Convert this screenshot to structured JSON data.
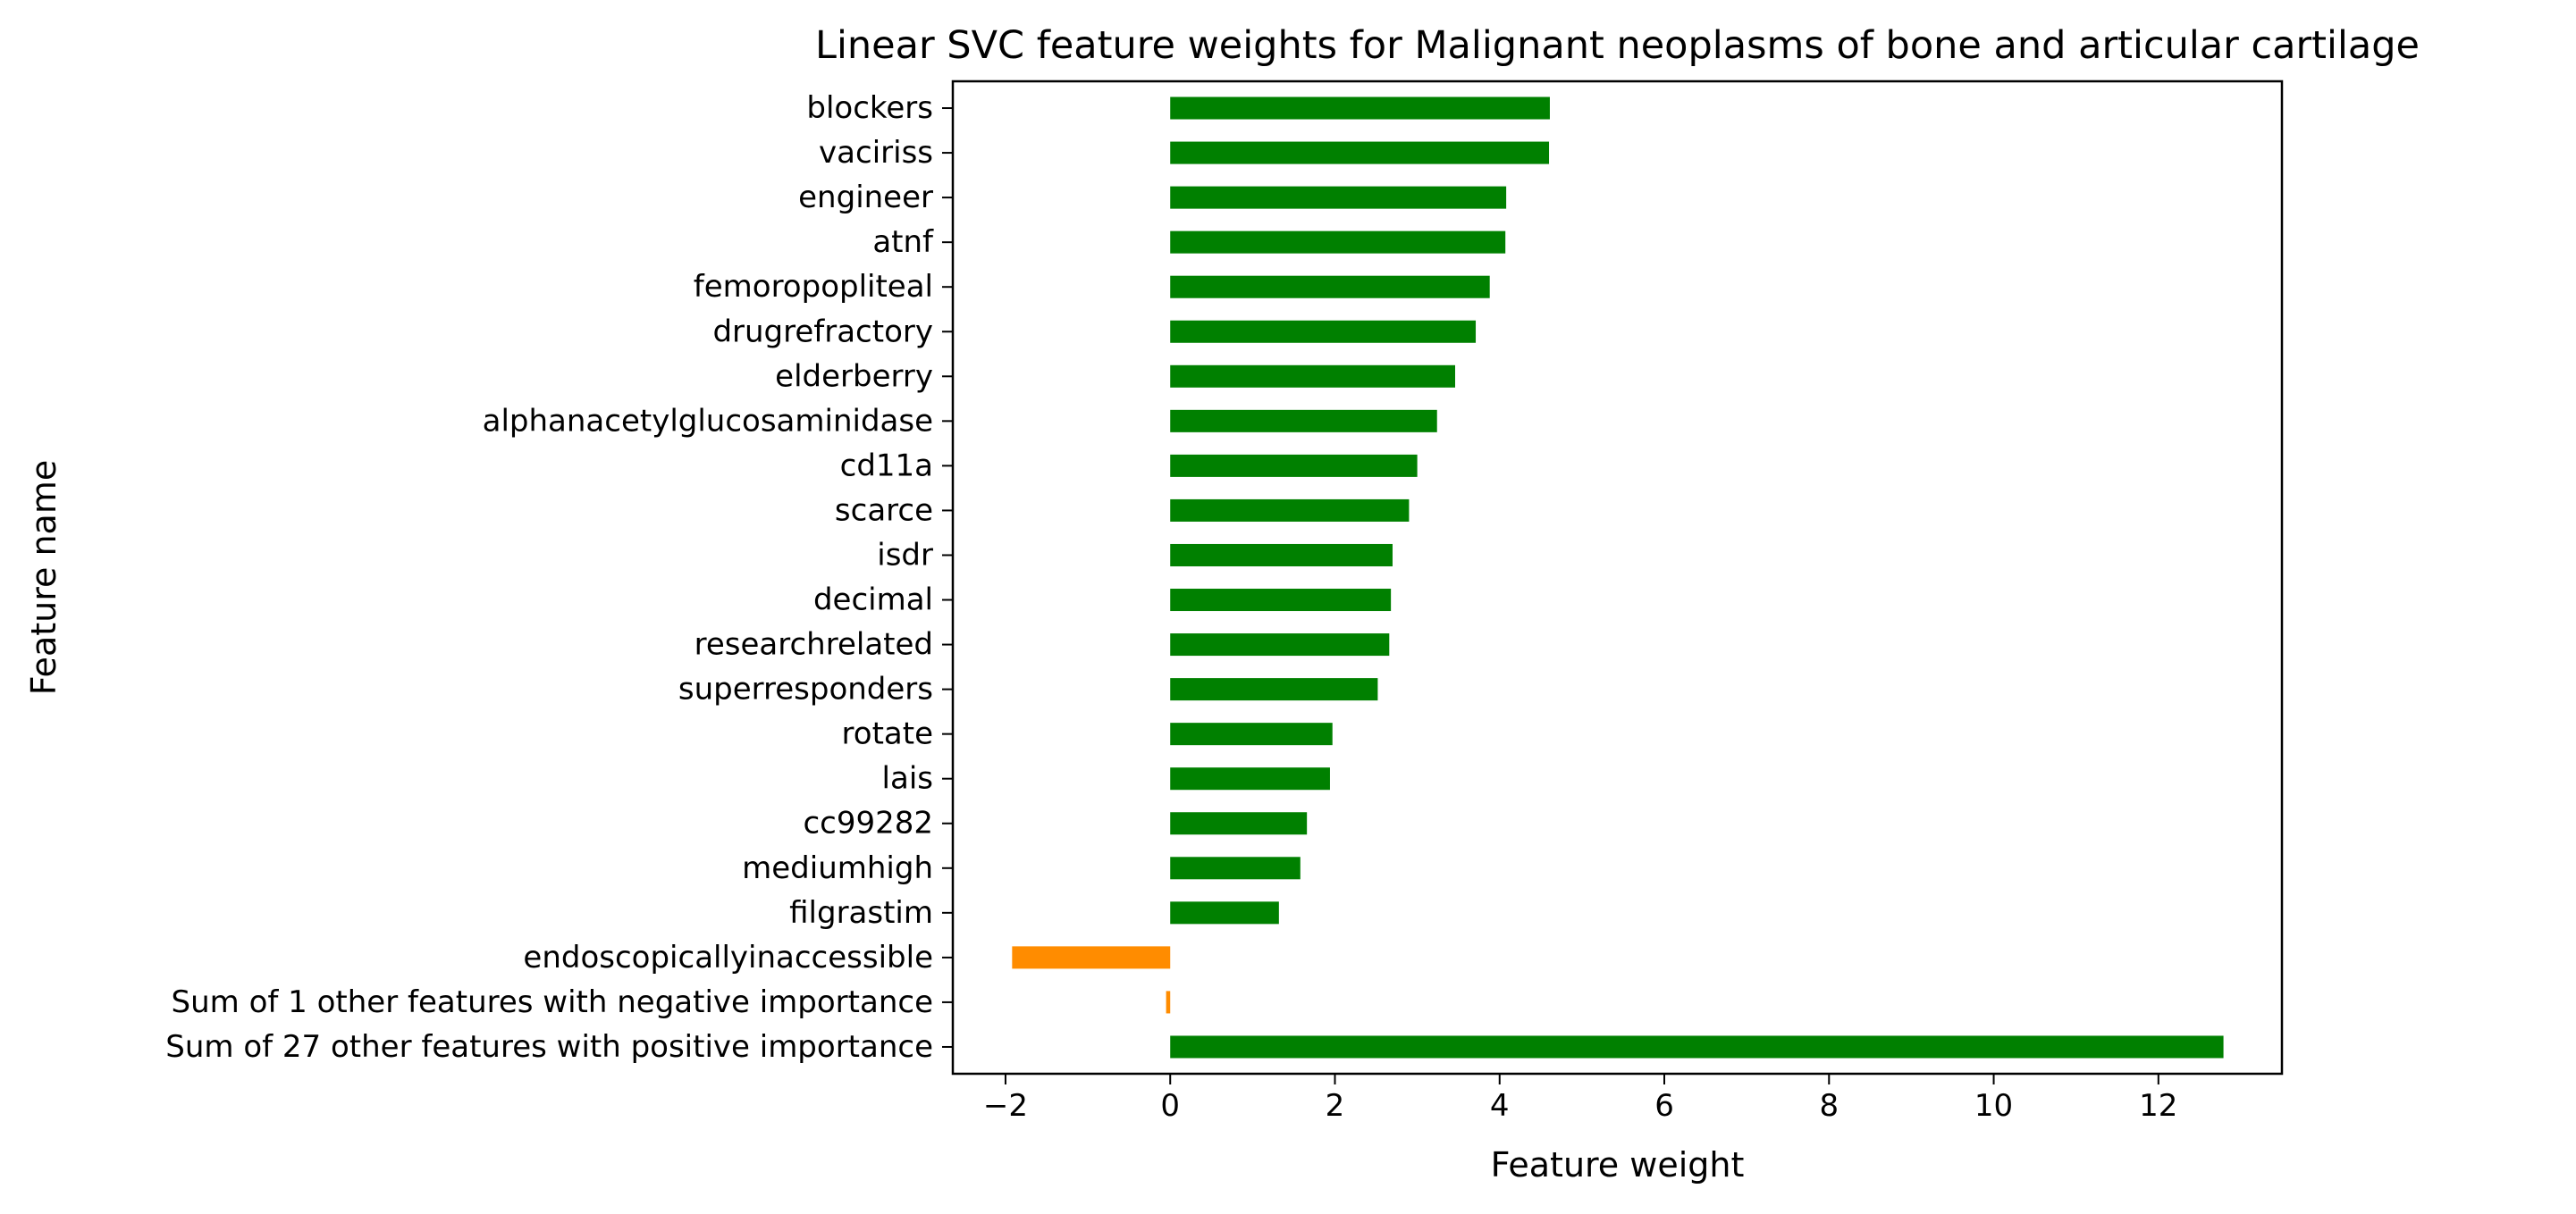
{
  "chart_data": {
    "type": "bar",
    "orientation": "horizontal",
    "title": "Linear SVC feature weights for Malignant neoplasms of bone and articular cartilage",
    "xlabel": "Feature weight",
    "ylabel": "Feature name",
    "xlim": [
      -2.64,
      13.5
    ],
    "xticks": [
      -2,
      0,
      2,
      4,
      6,
      8,
      10,
      12
    ],
    "xtick_labels": [
      "−2",
      "0",
      "2",
      "4",
      "6",
      "8",
      "10",
      "12"
    ],
    "grid": false,
    "legend": "none",
    "colors": {
      "positive": "#008000",
      "negative": "#ff8c00"
    },
    "categories": [
      "blockers",
      "vaciriss",
      "engineer",
      "atnf",
      "femoropopliteal",
      "drugrefractory",
      "elderberry",
      "alphanacetylglucosaminidase",
      "cd11a",
      "scarce",
      "isdr",
      "decimal",
      "researchrelated",
      "superresponders",
      "rotate",
      "lais",
      "cc99282",
      "mediumhigh",
      "filgrastim",
      "endoscopicallyinaccessible",
      "Sum of 1 other features with negative importance",
      "Sum of 27 other features with positive importance"
    ],
    "values": [
      4.61,
      4.6,
      4.08,
      4.07,
      3.88,
      3.71,
      3.46,
      3.24,
      3.0,
      2.9,
      2.7,
      2.68,
      2.66,
      2.52,
      1.97,
      1.94,
      1.66,
      1.58,
      1.32,
      -1.92,
      -0.05,
      12.79
    ]
  }
}
